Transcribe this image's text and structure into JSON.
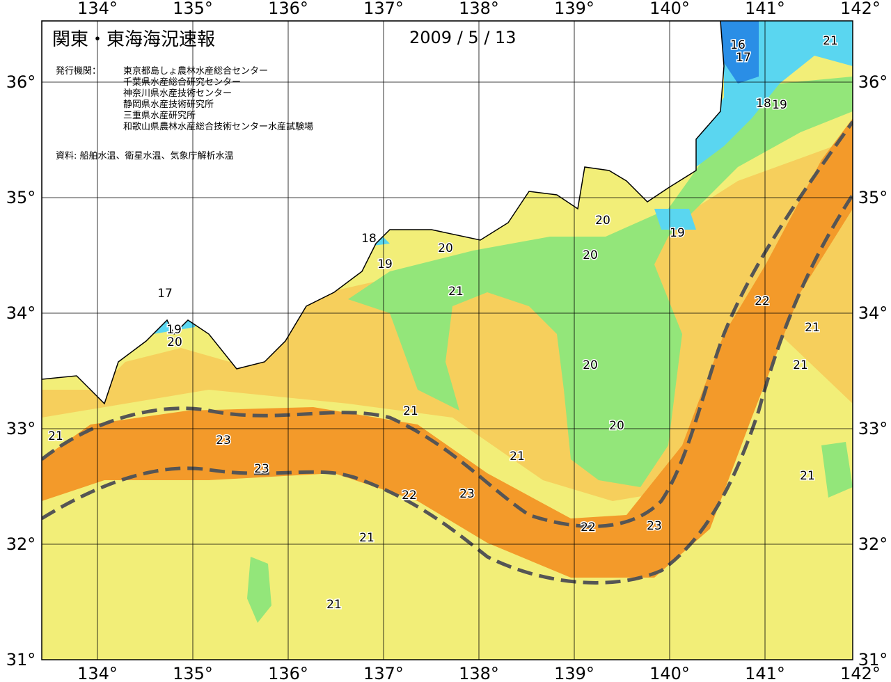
{
  "header": {
    "title": "関東・東海海況速報",
    "date": "2009 / 5 / 13",
    "issuer_label": "発行機関：",
    "issuers": [
      "東京都島しょ農林水産総合センター",
      "千葉県水産総合研究センター",
      "神奈川県水産技術センター",
      "静岡県水産技術研究所",
      "三重県水産研究所",
      "和歌山県農林水産総合技術センター水産試験場"
    ],
    "source": "資料: 船舶水温、衛星水温、気象庁解析水温"
  },
  "map": {
    "longitude_labels": [
      "134°",
      "135°",
      "136°",
      "137°",
      "138°",
      "139°",
      "140°",
      "141°",
      "142°"
    ],
    "latitude_labels": [
      "31°",
      "32°",
      "33°",
      "34°",
      "35°",
      "36°"
    ],
    "contour_labels": [
      "16",
      "17",
      "21",
      "18",
      "19",
      "20",
      "19",
      "18",
      "20",
      "19",
      "20",
      "21",
      "17",
      "22",
      "19",
      "21",
      "20",
      "20",
      "21",
      "21",
      "20",
      "21",
      "23",
      "21",
      "23",
      "21",
      "22",
      "23",
      "22",
      "23",
      "21",
      "21"
    ]
  }
}
